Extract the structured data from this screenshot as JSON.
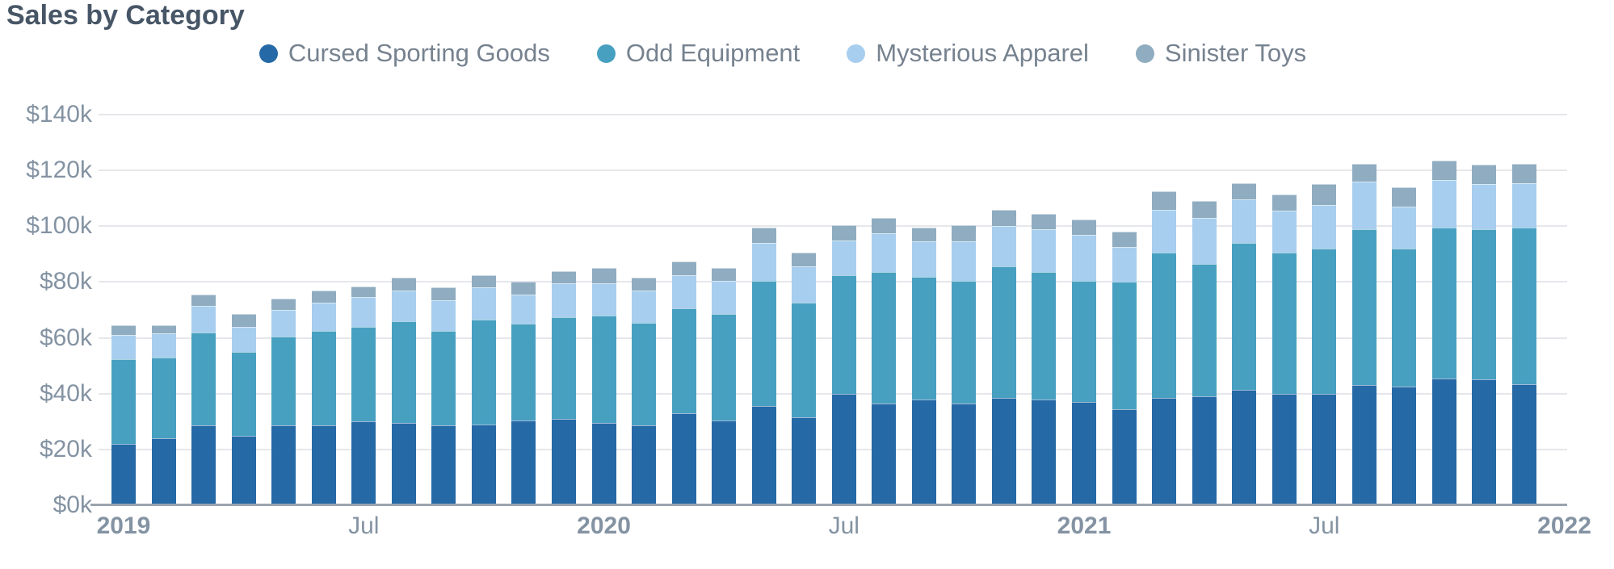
{
  "chart_data": {
    "type": "bar",
    "stacked": true,
    "title": "Sales by Category",
    "legend_position": "top",
    "grid": true,
    "x": [
      "2019-01",
      "2019-02",
      "2019-03",
      "2019-04",
      "2019-05",
      "2019-06",
      "2019-07",
      "2019-08",
      "2019-09",
      "2019-10",
      "2019-11",
      "2019-12",
      "2020-01",
      "2020-02",
      "2020-03",
      "2020-04",
      "2020-05",
      "2020-06",
      "2020-07",
      "2020-08",
      "2020-09",
      "2020-10",
      "2020-11",
      "2020-12",
      "2021-01",
      "2021-02",
      "2021-03",
      "2021-04",
      "2021-05",
      "2021-06",
      "2021-07",
      "2021-08",
      "2021-09",
      "2021-10",
      "2021-11",
      "2021-12"
    ],
    "x_tick_labels": [
      {
        "index": 0,
        "label": "2019",
        "bold": true
      },
      {
        "index": 6,
        "label": "Jul",
        "bold": false
      },
      {
        "index": 12,
        "label": "2020",
        "bold": true
      },
      {
        "index": 18,
        "label": "Jul",
        "bold": false
      },
      {
        "index": 24,
        "label": "2021",
        "bold": true
      },
      {
        "index": 30,
        "label": "Jul",
        "bold": false
      },
      {
        "index": 36,
        "label": "2022",
        "bold": true
      }
    ],
    "y_axis": {
      "min": 0,
      "max": 140,
      "step": 20,
      "unit": "thousand USD",
      "tick_labels": [
        "$0k",
        "$20k",
        "$40k",
        "$60k",
        "$80k",
        "$100k",
        "$120k",
        "$140k"
      ]
    },
    "series": [
      {
        "name": "Cursed Sporting Goods",
        "color": "#2569A6",
        "values": [
          22,
          24,
          28.5,
          25,
          28.5,
          28.5,
          30,
          29.5,
          28.5,
          29,
          30.5,
          31,
          29.5,
          28.5,
          33,
          30.5,
          35.5,
          31.5,
          40,
          36.5,
          38,
          36.5,
          38.5,
          38,
          37,
          34.5,
          38.5,
          39,
          41.5,
          40,
          40,
          43,
          42.5,
          45.5,
          45,
          43.5
        ]
      },
      {
        "name": "Odd Equipment",
        "color": "#48A0C1",
        "values": [
          30.5,
          29,
          33.5,
          30,
          32,
          34,
          34,
          36.5,
          34,
          37.5,
          34.5,
          36.5,
          38.5,
          37,
          37.5,
          38,
          45,
          41,
          42.5,
          47,
          44,
          44,
          47,
          45.5,
          43.5,
          45.5,
          52,
          47.5,
          52.5,
          50.5,
          52,
          56,
          49.5,
          54,
          54,
          56
        ]
      },
      {
        "name": "Mysterious Apparel",
        "color": "#A7CEEE",
        "values": [
          8.5,
          8.5,
          9.5,
          9,
          9.5,
          10,
          10.5,
          11,
          11,
          11.5,
          10.5,
          12,
          11.5,
          11.5,
          12,
          12,
          13.5,
          13,
          12.5,
          14,
          12.5,
          14,
          14.5,
          15.5,
          16.5,
          12.5,
          15.5,
          16.5,
          15.5,
          15,
          15.5,
          17,
          15,
          17,
          16,
          16
        ]
      },
      {
        "name": "Sinister Toys",
        "color": "#8FACC0",
        "values": [
          3.5,
          3,
          4,
          4.5,
          4,
          4.5,
          4,
          4.5,
          4.5,
          4.5,
          4.5,
          4.5,
          5.5,
          4.5,
          5,
          4.5,
          5.5,
          5,
          5.5,
          5.5,
          5,
          6,
          6,
          5.5,
          5.5,
          5.5,
          6.5,
          6,
          6,
          6,
          7.5,
          6.5,
          7,
          7,
          7,
          7
        ]
      }
    ],
    "colors": {
      "title_text": "#475666",
      "axis_text": "#8493A3",
      "legend_text": "#76828F",
      "gridline": "#E5E7EB",
      "axis_line": "#9AA4B0"
    }
  }
}
